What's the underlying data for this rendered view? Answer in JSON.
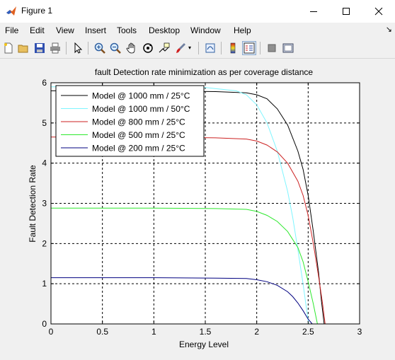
{
  "window": {
    "title": "Figure 1",
    "icon": "matlab-logo-icon",
    "controls": [
      "minimize-icon",
      "maximize-icon",
      "close-icon"
    ]
  },
  "menu": {
    "items": [
      "File",
      "Edit",
      "View",
      "Insert",
      "Tools",
      "Desktop",
      "Window",
      "Help"
    ],
    "overflow_icon": "dock-arrow-icon"
  },
  "toolbar": {
    "buttons": [
      "new-figure-icon",
      "open-file-icon",
      "save-icon",
      "print-icon",
      "edit-plot-icon",
      "zoom-in-icon",
      "zoom-out-icon",
      "pan-icon",
      "rotate-3d-icon",
      "data-cursor-icon",
      "brush-icon",
      "link-plot-icon",
      "colorbar-icon",
      "legend-icon",
      "hide-plot-tools-icon",
      "show-plot-tools-icon"
    ]
  },
  "chart_data": {
    "type": "line",
    "title": "fault Detection rate minimization as per coverage distance",
    "xlabel": "Energy Level",
    "ylabel": "Fault Detection Rate",
    "xlim": [
      0,
      3
    ],
    "ylim": [
      0,
      6
    ],
    "xticks": [
      "0",
      "0.5",
      "1",
      "1.5",
      "2",
      "2.5",
      "3"
    ],
    "yticks": [
      "0",
      "1",
      "2",
      "3",
      "4",
      "5",
      "6"
    ],
    "grid": true,
    "grid_style": "dashed",
    "legend_position": "top-left",
    "series": [
      {
        "name": "Model @ 1000 mm / 25°C",
        "color": "#000000",
        "x": [
          0,
          1.0,
          1.6,
          1.9,
          2.0,
          2.1,
          2.2,
          2.3,
          2.4,
          2.45,
          2.5,
          2.55,
          2.6,
          2.63,
          2.655
        ],
        "y": [
          5.8,
          5.8,
          5.78,
          5.75,
          5.7,
          5.6,
          5.35,
          4.95,
          4.3,
          3.85,
          3.2,
          2.3,
          1.3,
          0.55,
          0
        ]
      },
      {
        "name": "Model @ 1000 mm / 50°C",
        "color": "#7ff5ff",
        "x": [
          0,
          1.0,
          1.5,
          1.8,
          1.9,
          2.0,
          2.1,
          2.2,
          2.3,
          2.35,
          2.4,
          2.45,
          2.48,
          2.505
        ],
        "y": [
          5.9,
          5.9,
          5.88,
          5.8,
          5.7,
          5.45,
          5.0,
          4.3,
          3.3,
          2.65,
          1.85,
          1.0,
          0.45,
          0
        ]
      },
      {
        "name": "Model @ 800 mm / 25°C",
        "color": "#cc2222",
        "x": [
          0,
          1.0,
          1.6,
          1.9,
          2.0,
          2.1,
          2.2,
          2.3,
          2.4,
          2.45,
          2.5,
          2.55,
          2.6,
          2.64,
          2.665
        ],
        "y": [
          4.65,
          4.65,
          4.63,
          4.6,
          4.55,
          4.45,
          4.28,
          4.0,
          3.55,
          3.2,
          2.7,
          2.0,
          1.2,
          0.5,
          0
        ]
      },
      {
        "name": "Model @ 500 mm / 25°C",
        "color": "#2ee82e",
        "x": [
          0,
          1.0,
          1.6,
          1.9,
          2.0,
          2.1,
          2.2,
          2.3,
          2.4,
          2.45,
          2.5,
          2.55,
          2.59
        ],
        "y": [
          2.88,
          2.88,
          2.87,
          2.85,
          2.8,
          2.7,
          2.55,
          2.3,
          1.9,
          1.55,
          1.05,
          0.5,
          0
        ]
      },
      {
        "name": "Model @ 200 mm / 25°C",
        "color": "#000080",
        "x": [
          0,
          1.0,
          1.6,
          1.9,
          2.0,
          2.1,
          2.2,
          2.3,
          2.35,
          2.4,
          2.45,
          2.5,
          2.54
        ],
        "y": [
          1.15,
          1.15,
          1.14,
          1.13,
          1.1,
          1.05,
          0.96,
          0.8,
          0.68,
          0.52,
          0.33,
          0.12,
          0
        ]
      }
    ]
  }
}
